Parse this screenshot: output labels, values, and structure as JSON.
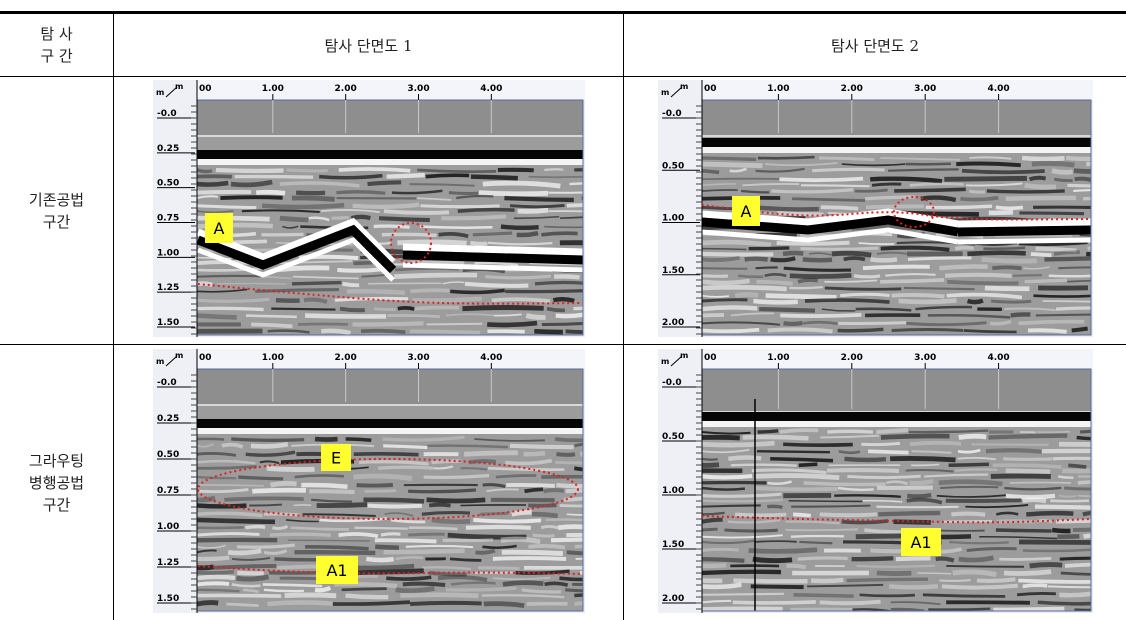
{
  "table": {
    "header": [
      [
        "탐 사",
        "구 간"
      ],
      "탐사 단면도 1",
      "탐사 단면도 2"
    ],
    "rows": [
      {
        "label": [
          "기존공법",
          "구간"
        ]
      },
      {
        "label": [
          "그라우팅",
          "병행공법",
          "구간"
        ]
      }
    ]
  },
  "images": [
    {
      "unit": [
        "m",
        "m"
      ],
      "x_ticks": [
        "00",
        "1.00",
        "2.00",
        "3.00",
        "4.00"
      ],
      "depth_ticks": [
        "-0.0",
        "0.25",
        "0.50",
        "0.75",
        "1.00",
        "1.25",
        "1.50"
      ],
      "annotations": [
        "A"
      ]
    },
    {
      "unit": [
        "m",
        "m"
      ],
      "x_ticks": [
        "00",
        "1.00",
        "2.00",
        "3.00",
        "4.00"
      ],
      "depth_ticks": [
        "-0.0",
        "0.50",
        "1.00",
        "1.50",
        "2.00"
      ],
      "annotations": [
        "A"
      ]
    },
    {
      "unit": [
        "m",
        "m"
      ],
      "x_ticks": [
        "00",
        "1.00",
        "2.00",
        "3.00",
        "4.00"
      ],
      "depth_ticks": [
        "-0.0",
        "0.25",
        "0.50",
        "0.75",
        "1.00",
        "1.25",
        "1.50"
      ],
      "annotations": [
        "E",
        "A1"
      ]
    },
    {
      "unit": [
        "m",
        "m"
      ],
      "x_ticks": [
        "00",
        "1.00",
        "2.00",
        "3.00",
        "4.00"
      ],
      "depth_ticks": [
        "-0.0",
        "0.50",
        "1.00",
        "1.50",
        "2.00"
      ],
      "annotations": [
        "A1"
      ]
    }
  ]
}
